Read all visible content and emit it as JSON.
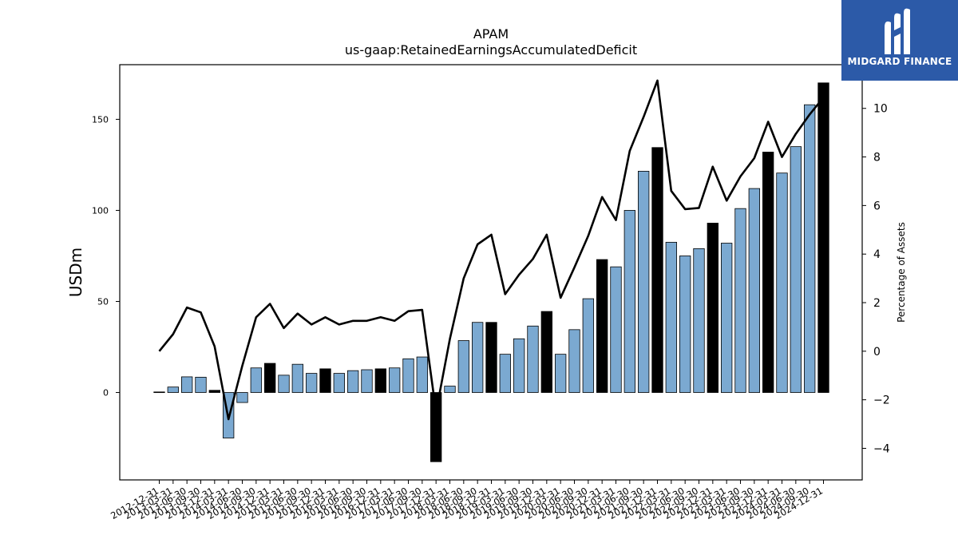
{
  "chart_data": {
    "type": "bar+line",
    "title": "APAM",
    "subtitle": "us-gaap:RetainedEarningsAccumulatedDeficit",
    "ylabel_left": "USDm",
    "ylabel_right": "Percentage of Assets",
    "ylim_left": [
      -48,
      180
    ],
    "ylim_right": [
      -5.3,
      11.8
    ],
    "yticks_left": [
      0,
      50,
      100,
      150
    ],
    "yticks_right": [
      -4,
      -2,
      0,
      2,
      4,
      6,
      8,
      10
    ],
    "grid": false,
    "colors": {
      "bar_quarter": "#7ba9d1",
      "bar_year_end": "#000000",
      "line": "#000000"
    },
    "categories": [
      "2012-12-31",
      "2013-03-31",
      "2013-06-30",
      "2013-09-30",
      "2013-12-31",
      "2014-03-31",
      "2014-06-30",
      "2014-09-30",
      "2014-12-31",
      "2015-03-31",
      "2015-06-30",
      "2015-09-30",
      "2015-12-31",
      "2016-03-31",
      "2016-06-30",
      "2016-09-30",
      "2016-12-31",
      "2017-03-31",
      "2017-06-30",
      "2017-09-30",
      "2017-12-31",
      "2018-03-31",
      "2018-06-30",
      "2018-09-30",
      "2018-12-31",
      "2019-03-31",
      "2019-06-30",
      "2019-09-30",
      "2019-12-31",
      "2020-03-31",
      "2020-06-30",
      "2020-09-30",
      "2020-12-31",
      "2021-03-31",
      "2021-06-30",
      "2021-09-30",
      "2021-12-31",
      "2022-03-31",
      "2022-06-30",
      "2022-09-30",
      "2022-12-31",
      "2023-03-31",
      "2023-06-30",
      "2023-09-30",
      "2023-12-31",
      "2024-03-31",
      "2024-06-30",
      "2024-09-30",
      "2024-12-31"
    ],
    "series": [
      {
        "type": "bar",
        "values": [
          0.3,
          3,
          8.6,
          8.4,
          1.2,
          -25,
          -5.5,
          13.5,
          16,
          9.5,
          15.5,
          10.5,
          13,
          10.5,
          12,
          12.5,
          13,
          13.5,
          18.5,
          19.5,
          -38,
          3.5,
          28.5,
          38.5,
          38.5,
          21,
          29.5,
          36.5,
          44.5,
          21,
          34.5,
          51.5,
          73,
          69,
          100,
          121.5,
          134.5,
          82.5,
          75,
          79,
          93,
          82,
          101,
          112,
          132,
          120.5,
          135,
          158,
          170
        ],
        "year_end": [
          1,
          0,
          0,
          0,
          1,
          0,
          0,
          0,
          1,
          0,
          0,
          0,
          1,
          0,
          0,
          0,
          1,
          0,
          0,
          0,
          1,
          0,
          0,
          0,
          1,
          0,
          0,
          0,
          1,
          0,
          0,
          0,
          1,
          0,
          0,
          0,
          1,
          0,
          0,
          0,
          1,
          0,
          0,
          0,
          1,
          0,
          0,
          0,
          1
        ]
      },
      {
        "type": "line",
        "axis": "right",
        "values": [
          0,
          0.7,
          1.8,
          1.6,
          0.2,
          -2.8,
          -0.6,
          1.4,
          1.95,
          0.95,
          1.55,
          1.1,
          1.4,
          1.1,
          1.25,
          1.25,
          1.4,
          1.25,
          1.65,
          1.7,
          -2.5,
          0.5,
          3.0,
          4.4,
          4.8,
          2.35,
          3.15,
          3.8,
          4.8,
          2.2,
          3.45,
          4.75,
          6.35,
          5.4,
          8.25,
          9.65,
          11.15,
          6.6,
          5.85,
          5.9,
          7.6,
          6.2,
          7.2,
          7.95,
          9.45,
          8.0,
          8.95,
          9.75,
          10.45
        ]
      }
    ]
  },
  "logo": {
    "text": "MIDGARD FINANCE"
  }
}
